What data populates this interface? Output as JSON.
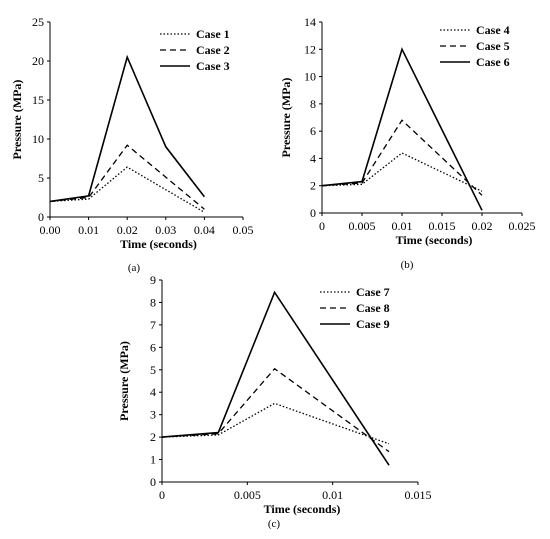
{
  "chart_data": [
    {
      "type": "line",
      "panel_label": "(a)",
      "xlabel": "Time (seconds)",
      "ylabel": "Pressure (MPa)",
      "xlim": [
        0,
        0.05
      ],
      "ylim": [
        0,
        25
      ],
      "xticks": [
        "0.00",
        "0.01",
        "0.02",
        "0.03",
        "0.04",
        "0.05"
      ],
      "yticks": [
        "0",
        "5",
        "10",
        "15",
        "20",
        "25"
      ],
      "grid": false,
      "legend_position": "top-right",
      "series": [
        {
          "name": "Case 1",
          "dash": "dotted",
          "points": [
            [
              0,
              2.0
            ],
            [
              0.01,
              2.3
            ],
            [
              0.02,
              6.4
            ],
            [
              0.04,
              0.6
            ]
          ]
        },
        {
          "name": "Case 2",
          "dash": "dashed",
          "points": [
            [
              0,
              2.0
            ],
            [
              0.01,
              2.5
            ],
            [
              0.02,
              9.2
            ],
            [
              0.04,
              1.0
            ]
          ]
        },
        {
          "name": "Case 3",
          "dash": "solid",
          "points": [
            [
              0,
              2.0
            ],
            [
              0.01,
              2.7
            ],
            [
              0.02,
              20.5
            ],
            [
              0.03,
              9.0
            ],
            [
              0.04,
              2.6
            ]
          ]
        }
      ]
    },
    {
      "type": "line",
      "panel_label": "(b)",
      "xlabel": "Time (seconds)",
      "ylabel": "Pressure (MPa)",
      "xlim": [
        0,
        0.025
      ],
      "ylim": [
        0,
        14
      ],
      "xticks": [
        "0",
        "0.005",
        "0.01",
        "0.015",
        "0.02",
        "0.025"
      ],
      "yticks": [
        "0",
        "2",
        "4",
        "6",
        "8",
        "10",
        "12",
        "14"
      ],
      "grid": false,
      "legend_position": "top-right",
      "series": [
        {
          "name": "Case 4",
          "dash": "dotted",
          "points": [
            [
              0,
              2.0
            ],
            [
              0.005,
              2.1
            ],
            [
              0.01,
              4.4
            ],
            [
              0.02,
              1.6
            ]
          ]
        },
        {
          "name": "Case 5",
          "dash": "dashed",
          "points": [
            [
              0,
              2.0
            ],
            [
              0.005,
              2.2
            ],
            [
              0.01,
              6.8
            ],
            [
              0.02,
              1.3
            ]
          ]
        },
        {
          "name": "Case 6",
          "dash": "solid",
          "points": [
            [
              0,
              2.0
            ],
            [
              0.005,
              2.3
            ],
            [
              0.01,
              12.0
            ],
            [
              0.02,
              0.2
            ]
          ]
        }
      ]
    },
    {
      "type": "line",
      "panel_label": "(c)",
      "xlabel": "Time (seconds)",
      "ylabel": "Pressure (MPa)",
      "xlim": [
        0,
        0.015
      ],
      "ylim": [
        0,
        9
      ],
      "xticks": [
        "0",
        "0.005",
        "0.01",
        "0.015"
      ],
      "yticks": [
        "0",
        "1",
        "2",
        "3",
        "4",
        "5",
        "6",
        "7",
        "8",
        "9"
      ],
      "grid": false,
      "legend_position": "top-right",
      "series": [
        {
          "name": "Case 7",
          "dash": "dotted",
          "points": [
            [
              0,
              2.0
            ],
            [
              0.0033,
              2.1
            ],
            [
              0.0066,
              3.5
            ],
            [
              0.0133,
              1.7
            ]
          ]
        },
        {
          "name": "Case 8",
          "dash": "dashed",
          "points": [
            [
              0,
              2.0
            ],
            [
              0.0033,
              2.15
            ],
            [
              0.0066,
              5.05
            ],
            [
              0.0133,
              1.35
            ]
          ]
        },
        {
          "name": "Case 9",
          "dash": "solid",
          "points": [
            [
              0,
              2.0
            ],
            [
              0.0033,
              2.2
            ],
            [
              0.0066,
              8.45
            ],
            [
              0.0133,
              0.75
            ]
          ]
        }
      ]
    }
  ]
}
